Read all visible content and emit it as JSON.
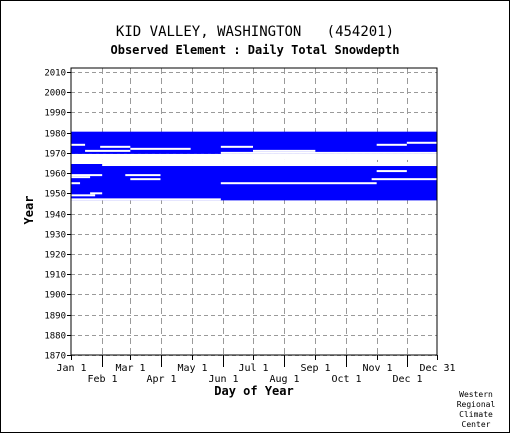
{
  "chart_data": {
    "type": "heatmap",
    "title": "KID VALLEY, WASHINGTON   (454201)",
    "subtitle": "Observed Element : Daily Total Snowdepth",
    "xlabel": "Day of Year",
    "ylabel": "Year",
    "xlim": [
      1,
      365
    ],
    "ylim": [
      1870,
      2012
    ],
    "grid": true,
    "color": "#0000ff",
    "x_ticks_upper": [
      {
        "label": "Jan 1",
        "day": 1
      },
      {
        "label": "Mar 1",
        "day": 60
      },
      {
        "label": "May 1",
        "day": 121
      },
      {
        "label": "Jul 1",
        "day": 182
      },
      {
        "label": "Sep 1",
        "day": 244
      },
      {
        "label": "Nov 1",
        "day": 305
      },
      {
        "label": "Dec 31",
        "day": 365
      }
    ],
    "x_ticks_lower": [
      {
        "label": "Feb 1",
        "day": 32
      },
      {
        "label": "Apr 1",
        "day": 91
      },
      {
        "label": "Jun 1",
        "day": 152
      },
      {
        "label": "Aug 1",
        "day": 213
      },
      {
        "label": "Oct 1",
        "day": 274
      },
      {
        "label": "Dec 1",
        "day": 335
      }
    ],
    "y_ticks": [
      1870,
      1880,
      1890,
      1900,
      1910,
      1920,
      1930,
      1940,
      1950,
      1960,
      1970,
      1980,
      1990,
      2000,
      2010
    ],
    "observed_spans": [
      {
        "year_start": 1970,
        "year_end": 1980,
        "day_start": 1,
        "day_end": 365
      },
      {
        "year_start": 1947,
        "year_end": 1964,
        "day_start": 1,
        "day_end": 365
      }
    ],
    "gaps": [
      {
        "year": 1974,
        "day_start": 1,
        "day_end": 15
      },
      {
        "year": 1974,
        "day_start": 305,
        "day_end": 335
      },
      {
        "year": 1973,
        "day_start": 30,
        "day_end": 60
      },
      {
        "year": 1972,
        "day_start": 60,
        "day_end": 120
      },
      {
        "year": 1973,
        "day_start": 150,
        "day_end": 182
      },
      {
        "year": 1971,
        "day_start": 15,
        "day_end": 60
      },
      {
        "year": 1971,
        "day_start": 182,
        "day_end": 244
      },
      {
        "year": 1970,
        "day_start": 150,
        "day_end": 365
      },
      {
        "year": 1975,
        "day_start": 335,
        "day_end": 365
      },
      {
        "year": 1968,
        "day_start": 1,
        "day_end": 365
      },
      {
        "year": 1967,
        "day_start": 1,
        "day_end": 365
      },
      {
        "year": 1966,
        "day_start": 1,
        "day_end": 305
      },
      {
        "year": 1965,
        "day_start": 1,
        "day_end": 365
      },
      {
        "year": 1964,
        "day_start": 32,
        "day_end": 365
      },
      {
        "year": 1961,
        "day_start": 305,
        "day_end": 335
      },
      {
        "year": 1959,
        "day_start": 1,
        "day_end": 32
      },
      {
        "year": 1959,
        "day_start": 55,
        "day_end": 90
      },
      {
        "year": 1958,
        "day_start": 1,
        "day_end": 20
      },
      {
        "year": 1957,
        "day_start": 60,
        "day_end": 90
      },
      {
        "year": 1957,
        "day_start": 300,
        "day_end": 365
      },
      {
        "year": 1955,
        "day_start": 150,
        "day_end": 305
      },
      {
        "year": 1955,
        "day_start": 1,
        "day_end": 10
      },
      {
        "year": 1950,
        "day_start": 20,
        "day_end": 32
      },
      {
        "year": 1949,
        "day_start": 1,
        "day_end": 25
      },
      {
        "year": 1947,
        "day_start": 1,
        "day_end": 150
      }
    ]
  },
  "credit": {
    "line1": "Western",
    "line2": "Regional",
    "line3": "Climate",
    "line4": "Center"
  }
}
